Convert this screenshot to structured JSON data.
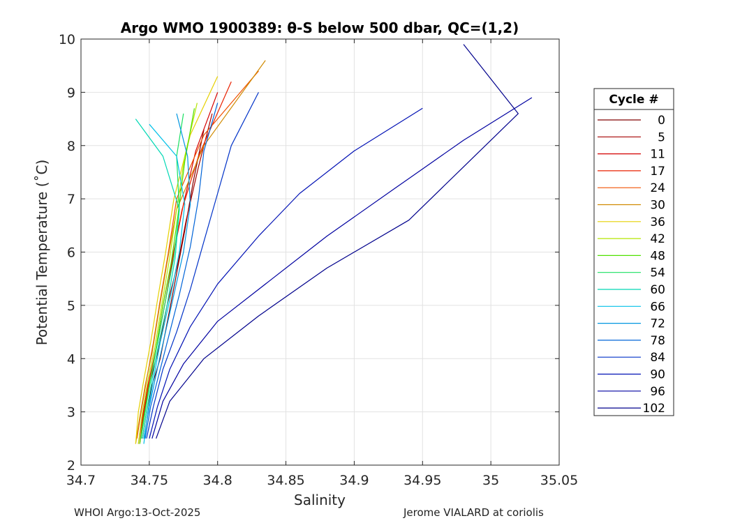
{
  "chart_data": {
    "type": "line",
    "title": "Argo WMO 1900389: θ-S below 500 dbar,  QC=(1,2)",
    "xlabel": "Salinity",
    "ylabel": "Potential Temperature (˚C)",
    "xlim": [
      34.7,
      35.05
    ],
    "ylim": [
      2,
      10
    ],
    "xticks": [
      34.7,
      34.75,
      34.8,
      34.85,
      34.9,
      34.95,
      35,
      35.05
    ],
    "xtick_labels": [
      "34.7",
      "34.75",
      "34.8",
      "34.85",
      "34.9",
      "34.95",
      "35",
      "35.05"
    ],
    "yticks": [
      2,
      3,
      4,
      5,
      6,
      7,
      8,
      9,
      10
    ],
    "ytick_labels": [
      "2",
      "3",
      "4",
      "5",
      "6",
      "7",
      "8",
      "9",
      "10"
    ],
    "grid": true,
    "legend_title": "Cycle #",
    "legend_position": "right",
    "series": [
      {
        "name": "0",
        "color": "#800000",
        "x": [
          34.745,
          34.748,
          34.752,
          34.758,
          34.764,
          34.77,
          34.776,
          34.782,
          34.79
        ],
        "y": [
          2.5,
          3.0,
          3.5,
          4.0,
          4.8,
          5.6,
          6.4,
          7.3,
          8.3
        ]
      },
      {
        "name": "5",
        "color": "#a50000",
        "x": [
          34.744,
          34.747,
          34.751,
          34.757,
          34.763,
          34.771,
          34.777,
          34.786,
          34.796
        ],
        "y": [
          2.5,
          3.1,
          3.6,
          4.2,
          5.0,
          5.8,
          6.6,
          7.6,
          8.6
        ]
      },
      {
        "name": "11",
        "color": "#d40000",
        "x": [
          34.743,
          34.746,
          34.75,
          34.756,
          34.762,
          34.768,
          34.775,
          34.784,
          34.8
        ],
        "y": [
          2.4,
          3.0,
          3.6,
          4.3,
          5.1,
          6.0,
          6.9,
          7.9,
          9.0
        ]
      },
      {
        "name": "17",
        "color": "#e82000",
        "x": [
          34.742,
          34.745,
          34.749,
          34.755,
          34.76,
          34.767,
          34.774,
          34.786,
          34.81
        ],
        "y": [
          2.4,
          2.9,
          3.5,
          4.2,
          5.0,
          5.9,
          6.8,
          7.8,
          9.2
        ]
      },
      {
        "name": "24",
        "color": "#f05000",
        "x": [
          34.741,
          34.744,
          34.748,
          34.753,
          34.758,
          34.764,
          34.77,
          34.79,
          34.83
        ],
        "y": [
          2.5,
          3.0,
          3.6,
          4.3,
          5.1,
          6.0,
          7.0,
          8.2,
          9.4
        ]
      },
      {
        "name": "30",
        "color": "#d08a00",
        "x": [
          34.74,
          34.743,
          34.747,
          34.752,
          34.757,
          34.763,
          34.77,
          34.79,
          34.835
        ],
        "y": [
          2.4,
          2.9,
          3.5,
          4.1,
          4.9,
          5.8,
          6.8,
          8.0,
          9.6
        ]
      },
      {
        "name": "36",
        "color": "#e6d000",
        "x": [
          34.74,
          34.742,
          34.746,
          34.751,
          34.756,
          34.762,
          34.768,
          34.78,
          34.8
        ],
        "y": [
          2.4,
          3.0,
          3.6,
          4.3,
          5.1,
          6.0,
          7.0,
          8.2,
          9.3
        ]
      },
      {
        "name": "42",
        "color": "#b4e600",
        "x": [
          34.742,
          34.745,
          34.749,
          34.754,
          34.759,
          34.765,
          34.77,
          34.776,
          34.785
        ],
        "y": [
          2.4,
          3.0,
          3.6,
          4.2,
          5.0,
          5.9,
          6.8,
          7.8,
          8.8
        ]
      },
      {
        "name": "48",
        "color": "#50e000",
        "x": [
          34.743,
          34.746,
          34.75,
          34.755,
          34.76,
          34.766,
          34.771,
          34.776,
          34.783
        ],
        "y": [
          2.4,
          2.9,
          3.5,
          4.2,
          5.0,
          5.8,
          6.7,
          7.7,
          8.7
        ]
      },
      {
        "name": "54",
        "color": "#18e060",
        "x": [
          34.744,
          34.747,
          34.751,
          34.756,
          34.762,
          34.768,
          34.772,
          34.77,
          34.775
        ],
        "y": [
          2.5,
          3.0,
          3.6,
          4.3,
          5.1,
          5.9,
          6.8,
          7.8,
          8.6
        ]
      },
      {
        "name": "60",
        "color": "#00d8b4",
        "x": [
          34.745,
          34.748,
          34.752,
          34.757,
          34.763,
          34.769,
          34.772,
          34.76,
          34.74
        ],
        "y": [
          2.5,
          3.0,
          3.6,
          4.3,
          5.0,
          5.9,
          6.8,
          7.8,
          8.5
        ]
      },
      {
        "name": "66",
        "color": "#00c0e8",
        "x": [
          34.746,
          34.749,
          34.753,
          34.758,
          34.765,
          34.772,
          34.776,
          34.77,
          34.75
        ],
        "y": [
          2.4,
          3.0,
          3.6,
          4.3,
          5.1,
          6.0,
          6.9,
          7.8,
          8.4
        ]
      },
      {
        "name": "72",
        "color": "#0096e0",
        "x": [
          34.746,
          34.75,
          34.755,
          34.761,
          34.768,
          34.775,
          34.78,
          34.778,
          34.77
        ],
        "y": [
          2.5,
          3.1,
          3.7,
          4.4,
          5.2,
          6.0,
          6.9,
          7.8,
          8.6
        ]
      },
      {
        "name": "78",
        "color": "#0064d8",
        "x": [
          34.747,
          34.751,
          34.757,
          34.764,
          34.772,
          34.78,
          34.786,
          34.79,
          34.8
        ],
        "y": [
          2.5,
          3.1,
          3.7,
          4.4,
          5.2,
          6.1,
          7.0,
          7.9,
          8.8
        ]
      },
      {
        "name": "84",
        "color": "#0032c8",
        "x": [
          34.748,
          34.753,
          34.76,
          34.77,
          34.78,
          34.79,
          34.8,
          34.81,
          34.83
        ],
        "y": [
          2.5,
          3.1,
          3.8,
          4.5,
          5.3,
          6.2,
          7.1,
          8.0,
          9.0
        ]
      },
      {
        "name": "90",
        "color": "#0010b4",
        "x": [
          34.75,
          34.756,
          34.765,
          34.78,
          34.8,
          34.83,
          34.86,
          34.9,
          34.95
        ],
        "y": [
          2.5,
          3.1,
          3.8,
          4.6,
          5.4,
          6.3,
          7.1,
          7.9,
          8.7
        ]
      },
      {
        "name": "96",
        "color": "#0000a0",
        "x": [
          34.752,
          34.76,
          34.775,
          34.8,
          34.84,
          34.88,
          34.93,
          34.98,
          35.03
        ],
        "y": [
          2.5,
          3.2,
          3.9,
          4.7,
          5.5,
          6.3,
          7.2,
          8.1,
          8.9
        ]
      },
      {
        "name": "102",
        "color": "#00008c",
        "x": [
          34.755,
          34.765,
          34.79,
          34.83,
          34.88,
          34.94,
          34.98,
          35.02,
          34.98
        ],
        "y": [
          2.5,
          3.2,
          4.0,
          4.8,
          5.7,
          6.6,
          7.6,
          8.6,
          9.9
        ]
      }
    ]
  },
  "footer": {
    "left": "WHOI Argo:13-Oct-2025",
    "right": "Jerome VIALARD at coriolis"
  }
}
